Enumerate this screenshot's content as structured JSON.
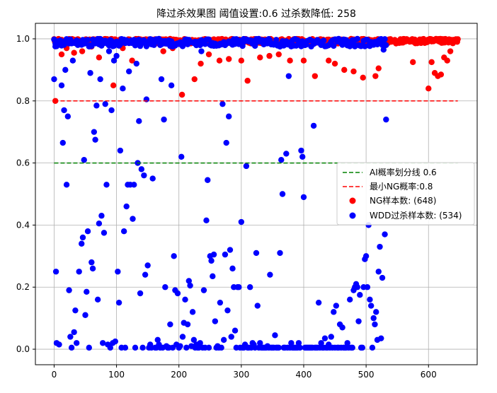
{
  "chart_data": {
    "type": "scatter",
    "title": "降过杀效果图 阈值设置:0.6 过杀数降低: 258",
    "xlabel": "",
    "ylabel": "",
    "xlim": [
      -30,
      678
    ],
    "ylim": [
      -0.05,
      1.05
    ],
    "xticks": [
      0,
      100,
      200,
      300,
      400,
      500,
      600
    ],
    "yticks": [
      0.0,
      0.2,
      0.4,
      0.6,
      0.8,
      1.0
    ],
    "xtick_labels": [
      "0",
      "100",
      "200",
      "300",
      "400",
      "500",
      "600"
    ],
    "ytick_labels": [
      "0.0",
      "0.2",
      "0.4",
      "0.6",
      "0.8",
      "1.0"
    ],
    "grid": true,
    "legend_position": "center-right",
    "lines": [
      {
        "name": "AI概率划分线 0.6",
        "y": 0.6,
        "x_range": [
          0,
          647
        ],
        "color": "#008000",
        "style": "dashed"
      },
      {
        "name": "最小NG概率:0.8",
        "y": 0.8,
        "x_range": [
          0,
          647
        ],
        "color": "#ff0000",
        "style": "dashed"
      }
    ],
    "series": [
      {
        "name": "NG样本数: (648)",
        "color": "#ff0000",
        "count": 648,
        "x_range": [
          0,
          647
        ],
        "typical_y_range": [
          0.95,
          1.0
        ],
        "outliers": [
          [
            2,
            0.8
          ],
          [
            12,
            0.95
          ],
          [
            20,
            0.97
          ],
          [
            32,
            0.955
          ],
          [
            45,
            0.96
          ],
          [
            60,
            0.975
          ],
          [
            72,
            0.94
          ],
          [
            95,
            0.85
          ],
          [
            110,
            0.97
          ],
          [
            125,
            0.93
          ],
          [
            150,
            0.985
          ],
          [
            175,
            0.96
          ],
          [
            190,
            0.97
          ],
          [
            205,
            0.82
          ],
          [
            225,
            0.87
          ],
          [
            235,
            0.92
          ],
          [
            248,
            0.95
          ],
          [
            265,
            0.93
          ],
          [
            280,
            0.935
          ],
          [
            300,
            0.93
          ],
          [
            310,
            0.865
          ],
          [
            330,
            0.94
          ],
          [
            345,
            0.945
          ],
          [
            360,
            0.95
          ],
          [
            378,
            0.93
          ],
          [
            400,
            0.93
          ],
          [
            418,
            0.88
          ],
          [
            440,
            0.93
          ],
          [
            450,
            0.92
          ],
          [
            465,
            0.9
          ],
          [
            480,
            0.895
          ],
          [
            495,
            0.875
          ],
          [
            515,
            0.88
          ],
          [
            520,
            0.905
          ],
          [
            575,
            0.925
          ],
          [
            600,
            0.84
          ],
          [
            605,
            0.925
          ],
          [
            610,
            0.89
          ],
          [
            615,
            0.88
          ],
          [
            620,
            0.885
          ],
          [
            625,
            0.94
          ],
          [
            630,
            0.93
          ],
          [
            635,
            0.96
          ]
        ]
      },
      {
        "name": "WDD过杀样本数: (534)",
        "color": "#0000ff",
        "count": 534,
        "x_range": [
          0,
          533
        ],
        "points": [
          [
            0,
            0.87
          ],
          [
            2,
            0.985
          ],
          [
            3,
            0.25
          ],
          [
            4,
            0.02
          ],
          [
            6,
            0.98
          ],
          [
            8,
            0.015
          ],
          [
            10,
            0.995
          ],
          [
            12,
            0.85
          ],
          [
            14,
            0.665
          ],
          [
            16,
            0.77
          ],
          [
            18,
            0.9
          ],
          [
            20,
            0.53
          ],
          [
            22,
            0.75
          ],
          [
            24,
            0.19
          ],
          [
            26,
            0.04
          ],
          [
            28,
            0.005
          ],
          [
            30,
            0.93
          ],
          [
            32,
            0.055
          ],
          [
            34,
            0.125
          ],
          [
            36,
            0.02
          ],
          [
            38,
            0.98
          ],
          [
            40,
            0.25
          ],
          [
            42,
            0.99
          ],
          [
            44,
            0.34
          ],
          [
            46,
            0.36
          ],
          [
            48,
            0.61
          ],
          [
            50,
            0.11
          ],
          [
            52,
            0.185
          ],
          [
            54,
            0.38
          ],
          [
            56,
            0.005
          ],
          [
            58,
            0.89
          ],
          [
            60,
            0.28
          ],
          [
            62,
            0.26
          ],
          [
            64,
            0.7
          ],
          [
            66,
            0.675
          ],
          [
            68,
            0.785
          ],
          [
            70,
            0.16
          ],
          [
            72,
            0.405
          ],
          [
            74,
            0.87
          ],
          [
            76,
            0.43
          ],
          [
            78,
            0.02
          ],
          [
            80,
            0.375
          ],
          [
            82,
            0.79
          ],
          [
            84,
            0.53
          ],
          [
            86,
            0.015
          ],
          [
            88,
            0.96
          ],
          [
            90,
            0.005
          ],
          [
            92,
            0.77
          ],
          [
            94,
            0.02
          ],
          [
            96,
            0.93
          ],
          [
            98,
            0.025
          ],
          [
            100,
            0.945
          ],
          [
            102,
            0.25
          ],
          [
            104,
            0.15
          ],
          [
            106,
            0.64
          ],
          [
            108,
            0.005
          ],
          [
            110,
            0.84
          ],
          [
            112,
            0.38
          ],
          [
            114,
            0.005
          ],
          [
            116,
            0.46
          ],
          [
            118,
            0.53
          ],
          [
            120,
            0.895
          ],
          [
            122,
            0.53
          ],
          [
            124,
            0.995
          ],
          [
            126,
            0.42
          ],
          [
            128,
            0.53
          ],
          [
            130,
            0.005
          ],
          [
            132,
            0.92
          ],
          [
            134,
            0.6
          ],
          [
            136,
            0.735
          ],
          [
            138,
            0.18
          ],
          [
            140,
            0.58
          ],
          [
            142,
            0.005
          ],
          [
            144,
            0.56
          ],
          [
            146,
            0.24
          ],
          [
            148,
            0.805
          ],
          [
            150,
            0.27
          ],
          [
            152,
            0.005
          ],
          [
            154,
            0.015
          ],
          [
            156,
            0.005
          ],
          [
            158,
            0.55
          ],
          [
            160,
            0.98
          ],
          [
            162,
            0.005
          ],
          [
            164,
            0.005
          ],
          [
            166,
            0.03
          ],
          [
            168,
            0.015
          ],
          [
            170,
            0.005
          ],
          [
            172,
            0.87
          ],
          [
            174,
            0.005
          ],
          [
            176,
            0.74
          ],
          [
            178,
            0.2
          ],
          [
            180,
            0.01
          ],
          [
            182,
            0.005
          ],
          [
            184,
            0.005
          ],
          [
            186,
            0.08
          ],
          [
            188,
            0.85
          ],
          [
            190,
            0.005
          ],
          [
            192,
            0.3
          ],
          [
            194,
            0.19
          ],
          [
            196,
            0.015
          ],
          [
            198,
            0.18
          ],
          [
            200,
            0.005
          ],
          [
            202,
            0.01
          ],
          [
            204,
            0.62
          ],
          [
            206,
            0.04
          ],
          [
            208,
            0.085
          ],
          [
            210,
            0.16
          ],
          [
            212,
            0.005
          ],
          [
            214,
            0.08
          ],
          [
            216,
            0.22
          ],
          [
            218,
            0.205
          ],
          [
            220,
            0.01
          ],
          [
            222,
            0.12
          ],
          [
            224,
            0.03
          ],
          [
            226,
            0.005
          ],
          [
            228,
            0.015
          ],
          [
            230,
            0.005
          ],
          [
            232,
            0.005
          ],
          [
            234,
            0.02
          ],
          [
            236,
            0.96
          ],
          [
            238,
            0.005
          ],
          [
            240,
            0.19
          ],
          [
            242,
            0.005
          ],
          [
            244,
            0.415
          ],
          [
            246,
            0.545
          ],
          [
            248,
            0.005
          ],
          [
            250,
            0.3
          ],
          [
            252,
            0.285
          ],
          [
            254,
            0.235
          ],
          [
            256,
            0.305
          ],
          [
            258,
            0.09
          ],
          [
            260,
            0.005
          ],
          [
            262,
            0.01
          ],
          [
            264,
            0.005
          ],
          [
            266,
            0.15
          ],
          [
            268,
            0.005
          ],
          [
            270,
            0.79
          ],
          [
            272,
            0.03
          ],
          [
            274,
            0.305
          ],
          [
            276,
            0.665
          ],
          [
            278,
            0.125
          ],
          [
            280,
            0.75
          ],
          [
            282,
            0.32
          ],
          [
            284,
            0.04
          ],
          [
            286,
            0.26
          ],
          [
            288,
            0.2
          ],
          [
            290,
            0.06
          ],
          [
            292,
            0.005
          ],
          [
            294,
            0.2
          ],
          [
            296,
            0.2
          ],
          [
            298,
            0.005
          ],
          [
            300,
            0.41
          ],
          [
            302,
            0.005
          ],
          [
            304,
            0.005
          ],
          [
            306,
            0.015
          ],
          [
            308,
            0.59
          ],
          [
            310,
            0.005
          ],
          [
            312,
            0.005
          ],
          [
            314,
            0.2
          ],
          [
            316,
            0.005
          ],
          [
            318,
            0.02
          ],
          [
            320,
            0.015
          ],
          [
            322,
            0.005
          ],
          [
            324,
            0.31
          ],
          [
            326,
            0.14
          ],
          [
            328,
            0.005
          ],
          [
            330,
            0.02
          ],
          [
            332,
            0.005
          ],
          [
            334,
            0.005
          ],
          [
            336,
            0.005
          ],
          [
            338,
            0.005
          ],
          [
            340,
            0.005
          ],
          [
            342,
            0.01
          ],
          [
            344,
            0.005
          ],
          [
            346,
            0.24
          ],
          [
            348,
            0.005
          ],
          [
            350,
            0.005
          ],
          [
            352,
            0.005
          ],
          [
            354,
            0.045
          ],
          [
            356,
            0.005
          ],
          [
            358,
            0.005
          ],
          [
            360,
            0.005
          ],
          [
            362,
            0.31
          ],
          [
            364,
            0.61
          ],
          [
            366,
            0.5
          ],
          [
            368,
            0.005
          ],
          [
            370,
            0.005
          ],
          [
            372,
            0.63
          ],
          [
            374,
            0.005
          ],
          [
            376,
            0.88
          ],
          [
            378,
            0.005
          ],
          [
            380,
            0.02
          ],
          [
            382,
            0.005
          ],
          [
            384,
            0.005
          ],
          [
            386,
            0.005
          ],
          [
            388,
            0.005
          ],
          [
            390,
            0.005
          ],
          [
            392,
            0.02
          ],
          [
            394,
            0.005
          ],
          [
            396,
            0.64
          ],
          [
            398,
            0.62
          ],
          [
            400,
            0.49
          ],
          [
            402,
            0.005
          ],
          [
            404,
            0.005
          ],
          [
            406,
            0.005
          ],
          [
            408,
            0.005
          ],
          [
            410,
            0.005
          ],
          [
            412,
            0.005
          ],
          [
            414,
            0.005
          ],
          [
            416,
            0.72
          ],
          [
            418,
            0.005
          ],
          [
            420,
            0.005
          ],
          [
            422,
            0.005
          ],
          [
            424,
            0.15
          ],
          [
            426,
            0.005
          ],
          [
            428,
            0.02
          ],
          [
            430,
            0.005
          ],
          [
            432,
            0.005
          ],
          [
            434,
            0.035
          ],
          [
            436,
            0.005
          ],
          [
            438,
            0.005
          ],
          [
            440,
            0.015
          ],
          [
            442,
            0.005
          ],
          [
            444,
            0.04
          ],
          [
            446,
            0.005
          ],
          [
            448,
            0.12
          ],
          [
            450,
            0.005
          ],
          [
            452,
            0.14
          ],
          [
            454,
            0.005
          ],
          [
            456,
            0.005
          ],
          [
            458,
            0.08
          ],
          [
            460,
            0.005
          ],
          [
            462,
            0.07
          ],
          [
            464,
            0.005
          ],
          [
            466,
            0.005
          ],
          [
            468,
            0.005
          ],
          [
            470,
            0.02
          ],
          [
            472,
            0.005
          ],
          [
            474,
            0.16
          ],
          [
            476,
            0.005
          ],
          [
            478,
            0.005
          ],
          [
            480,
            0.19
          ],
          [
            482,
            0.2
          ],
          [
            484,
            0.21
          ],
          [
            486,
            0.2
          ],
          [
            488,
            0.09
          ],
          [
            490,
            0.175
          ],
          [
            492,
            0.005
          ],
          [
            494,
            0.005
          ],
          [
            496,
            0.2
          ],
          [
            498,
            0.29
          ],
          [
            500,
            0.3
          ],
          [
            502,
            0.2
          ],
          [
            504,
            0.4
          ],
          [
            506,
            0.16
          ],
          [
            508,
            0.14
          ],
          [
            510,
            0.005
          ],
          [
            512,
            0.1
          ],
          [
            514,
            0.08
          ],
          [
            516,
            0.12
          ],
          [
            518,
            0.03
          ],
          [
            520,
            0.25
          ],
          [
            522,
            0.33
          ],
          [
            524,
            0.035
          ],
          [
            526,
            0.23
          ],
          [
            528,
            0.965
          ],
          [
            530,
            0.37
          ],
          [
            532,
            0.74
          ]
        ]
      }
    ]
  }
}
